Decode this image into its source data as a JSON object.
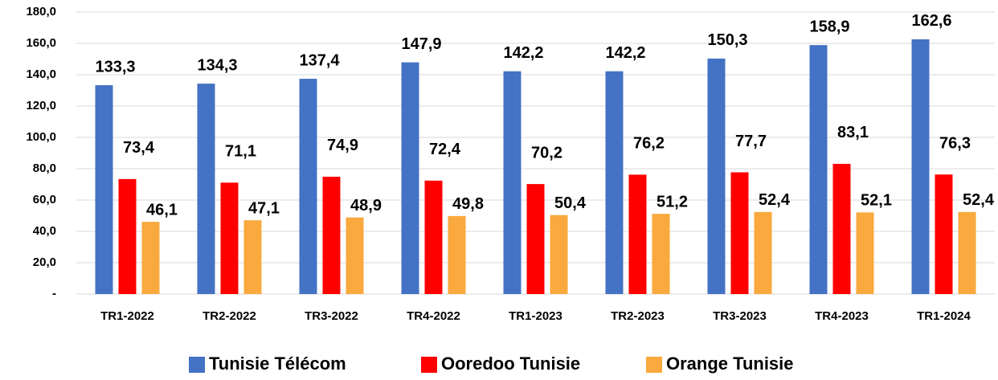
{
  "chart_data": {
    "type": "bar",
    "categories": [
      "TR1-2022",
      "TR2-2022",
      "TR3-2022",
      "TR4-2022",
      "TR1-2023",
      "TR2-2023",
      "TR3-2023",
      "TR4-2023",
      "TR1-2024"
    ],
    "series": [
      {
        "name": "Tunisie Télécom",
        "color": "#4472c4",
        "values": [
          133.3,
          134.3,
          137.4,
          147.9,
          142.2,
          142.2,
          150.3,
          158.9,
          162.6
        ],
        "value_labels": [
          "133,3",
          "134,3",
          "137,4",
          "147,9",
          "142,2",
          "142,2",
          "150,3",
          "158,9",
          "162,6"
        ]
      },
      {
        "name": "Ooredoo Tunisie",
        "color": "#ff0000",
        "values": [
          73.4,
          71.1,
          74.9,
          72.4,
          70.2,
          76.2,
          77.7,
          83.1,
          76.3
        ],
        "value_labels": [
          "73,4",
          "71,1",
          "74,9",
          "72,4",
          "70,2",
          "76,2",
          "77,7",
          "83,1",
          "76,3"
        ]
      },
      {
        "name": "Orange Tunisie",
        "color": "#f9a93e",
        "values": [
          46.1,
          47.1,
          48.9,
          49.8,
          50.4,
          51.2,
          52.4,
          52.1,
          52.4
        ],
        "value_labels": [
          "46,1",
          "47,1",
          "48,9",
          "49,8",
          "50,4",
          "51,2",
          "52,4",
          "52,1",
          "52,4"
        ]
      }
    ],
    "ylim": [
      0,
      180
    ],
    "yticks": [
      {
        "value": 0,
        "label": "-"
      },
      {
        "value": 20,
        "label": "20,0"
      },
      {
        "value": 40,
        "label": "40,0"
      },
      {
        "value": 60,
        "label": "60,0"
      },
      {
        "value": 80,
        "label": "80,0"
      },
      {
        "value": 100,
        "label": "100,0"
      },
      {
        "value": 120,
        "label": "120,0"
      },
      {
        "value": 140,
        "label": "140,0"
      },
      {
        "value": 160,
        "label": "160,0"
      },
      {
        "value": 180,
        "label": "180,0"
      }
    ],
    "grid": true,
    "legend": "bottom"
  }
}
